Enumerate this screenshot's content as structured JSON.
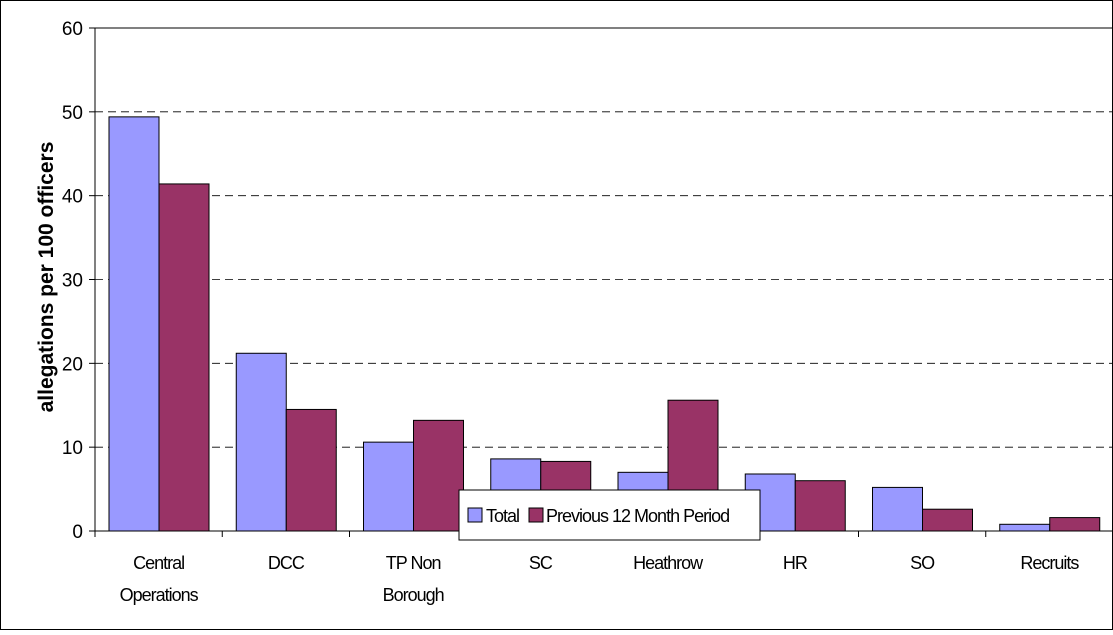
{
  "chart_data": {
    "type": "bar",
    "title": "",
    "xlabel": "",
    "ylabel": "allegations per 100 officers",
    "ylim": [
      0,
      60
    ],
    "yticks": [
      0,
      10,
      20,
      30,
      40,
      50,
      60
    ],
    "grid": "horizontal dashed",
    "legend_position": "bottom-center",
    "categories": [
      [
        "Central",
        "Operations"
      ],
      [
        "DCC"
      ],
      [
        "TP Non",
        "Borough"
      ],
      [
        "SC"
      ],
      [
        "Heathrow"
      ],
      [
        "HR"
      ],
      [
        "SO"
      ],
      [
        "Recruits"
      ]
    ],
    "series": [
      {
        "name": "Total",
        "color": "#9999FF",
        "values": [
          49.4,
          21.2,
          10.6,
          8.6,
          7.0,
          6.8,
          5.2,
          0.8
        ]
      },
      {
        "name": "Previous 12 Month Period",
        "color": "#993366",
        "values": [
          41.4,
          14.5,
          13.2,
          8.3,
          15.6,
          6.0,
          2.6,
          1.6
        ]
      }
    ]
  }
}
